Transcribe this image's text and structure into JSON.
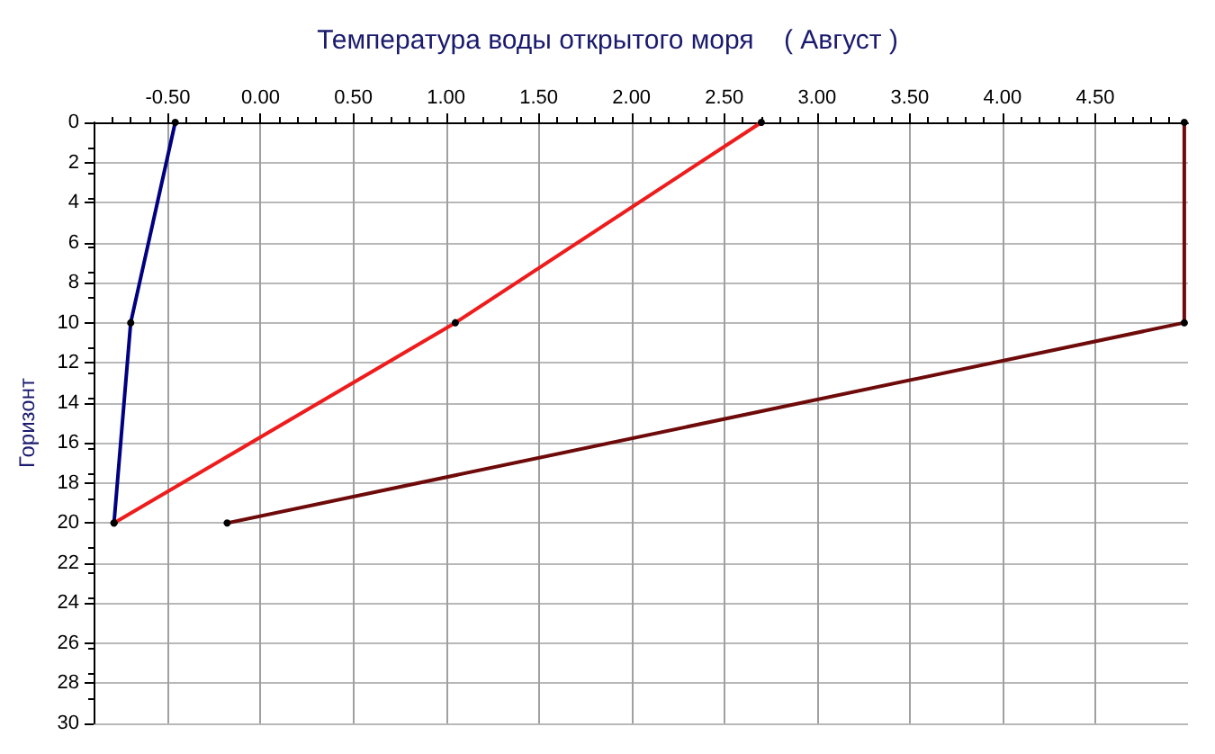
{
  "chart_data": {
    "type": "line",
    "title": "Температура воды открытого моря    ( Август )",
    "ylabel": "Горизонт",
    "xlim": [
      -0.9,
      5.0
    ],
    "xticks": [
      {
        "value": -0.5,
        "label": "-0.50"
      },
      {
        "value": 0,
        "label": "0.00"
      },
      {
        "value": 0.5,
        "label": "0.50"
      },
      {
        "value": 1,
        "label": "1.00"
      },
      {
        "value": 1.5,
        "label": "1.50"
      },
      {
        "value": 2,
        "label": "2.00"
      },
      {
        "value": 2.5,
        "label": "2.50"
      },
      {
        "value": 3,
        "label": "3.00"
      },
      {
        "value": 3.5,
        "label": "3.50"
      },
      {
        "value": 4,
        "label": "4.00"
      },
      {
        "value": 4.5,
        "label": "4.50"
      }
    ],
    "ylim": [
      30,
      0
    ],
    "yticks": [
      0,
      2,
      4,
      6,
      8,
      10,
      12,
      14,
      16,
      18,
      20,
      22,
      24,
      26,
      28,
      30
    ],
    "grid": true,
    "marker": "circle",
    "line_style": "solid",
    "series": [
      {
        "color": "#000080",
        "x": [
          -0.46,
          -0.7,
          -0.79
        ],
        "values": [
          0,
          10,
          20
        ]
      },
      {
        "color": "#ee1c1c",
        "x": [
          2.7,
          1.05,
          -0.79
        ],
        "values": [
          0,
          10,
          20
        ]
      },
      {
        "color": "#6e0a0a",
        "x": [
          4.98,
          4.98,
          -0.18
        ],
        "values": [
          0,
          10,
          20
        ]
      }
    ]
  }
}
